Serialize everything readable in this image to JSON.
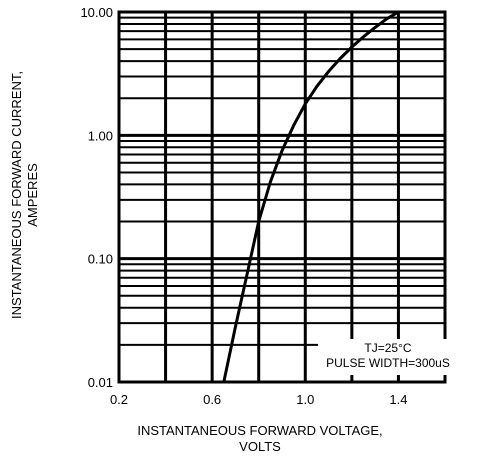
{
  "chart_data": {
    "type": "line",
    "xlabel_lines": [
      "INSTANTANEOUS FORWARD VOLTAGE,",
      "VOLTS"
    ],
    "ylabel_lines": [
      "INSTANTANEOUS FORWARD CURRENT,",
      "AMPERES"
    ],
    "x_ticks": [
      "0.2",
      "0.6",
      "1.0",
      "1.4"
    ],
    "y_ticks": [
      "10.00",
      "1.00",
      "0.10",
      "0.01"
    ],
    "xlim": [
      0.2,
      1.6
    ],
    "ylim": [
      0.01,
      10
    ],
    "yscale": "log",
    "grid": true,
    "legend_lines": [
      "TJ=25°C",
      "PULSE WIDTH=300uS"
    ],
    "series": [
      {
        "x": [
          0.65,
          0.7,
          0.75,
          0.8,
          0.85,
          0.9,
          0.95,
          1.0,
          1.05,
          1.1,
          1.15,
          1.2,
          1.25,
          1.3,
          1.35,
          1.4
        ],
        "y": [
          0.01,
          0.028,
          0.075,
          0.2,
          0.42,
          0.75,
          1.2,
          1.8,
          2.5,
          3.3,
          4.2,
          5.2,
          6.3,
          7.5,
          8.8,
          10.0
        ]
      }
    ]
  }
}
